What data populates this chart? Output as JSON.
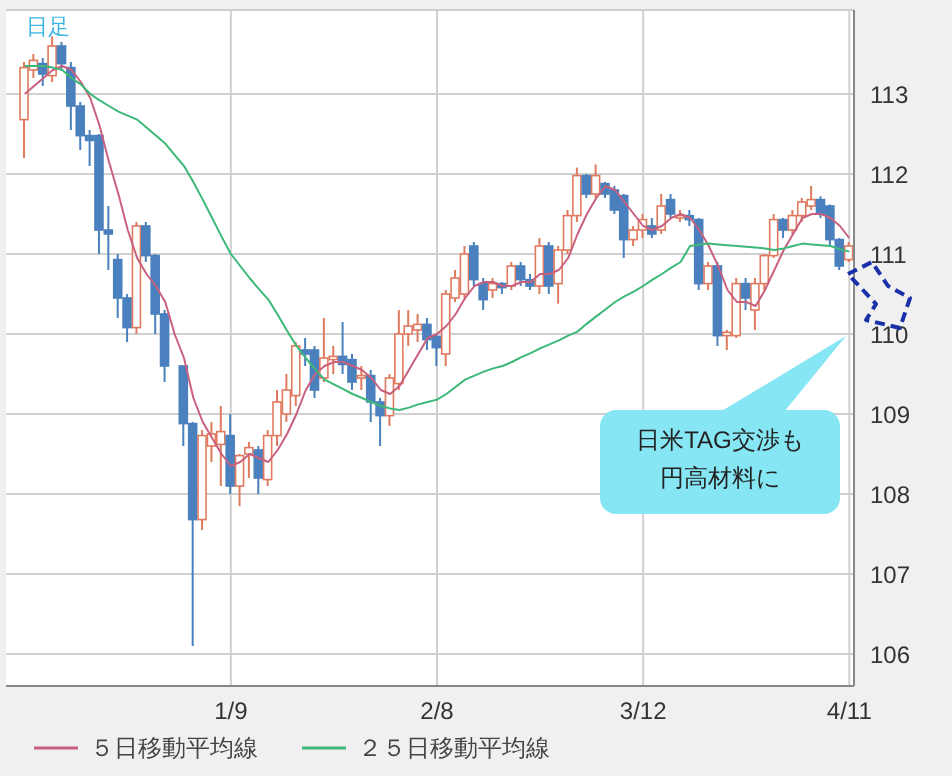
{
  "chart_data": {
    "type": "candlestick",
    "annotations": [
      "日足",
      "日米TAG交渉も円高材料に"
    ],
    "categories": [
      null,
      null,
      null,
      null,
      null,
      null,
      null,
      null,
      null,
      null,
      null,
      null,
      null,
      null,
      null,
      null,
      null,
      null,
      null,
      null,
      null,
      null,
      "1/9",
      null,
      null,
      null,
      null,
      null,
      null,
      null,
      null,
      null,
      null,
      null,
      null,
      null,
      null,
      null,
      null,
      null,
      null,
      null,
      null,
      null,
      "2/8",
      null,
      null,
      null,
      null,
      null,
      null,
      null,
      null,
      null,
      null,
      null,
      null,
      null,
      null,
      null,
      null,
      null,
      null,
      null,
      null,
      null,
      "3/12",
      null,
      null,
      null,
      null,
      null,
      null,
      null,
      null,
      null,
      null,
      null,
      null,
      null,
      null,
      null,
      null,
      null,
      null,
      null,
      null,
      null,
      "4/11"
    ],
    "ohlc": [
      [
        112.68,
        113.4,
        112.2,
        113.33
      ],
      [
        113.3,
        113.5,
        113.2,
        113.42
      ],
      [
        113.38,
        113.45,
        113.1,
        113.25
      ],
      [
        113.23,
        113.72,
        113.15,
        113.6
      ],
      [
        113.6,
        113.65,
        113.3,
        113.38
      ],
      [
        113.33,
        113.4,
        112.55,
        112.85
      ],
      [
        112.85,
        112.9,
        112.3,
        112.48
      ],
      [
        112.48,
        112.55,
        112.1,
        112.42
      ],
      [
        112.48,
        112.5,
        111.0,
        111.3
      ],
      [
        111.3,
        111.6,
        110.8,
        111.25
      ],
      [
        110.93,
        111.0,
        110.2,
        110.45
      ],
      [
        110.45,
        110.5,
        109.9,
        110.08
      ],
      [
        110.08,
        111.4,
        110.0,
        111.35
      ],
      [
        111.35,
        111.4,
        110.9,
        110.98
      ],
      [
        110.98,
        111.0,
        110.0,
        110.25
      ],
      [
        110.25,
        110.3,
        109.4,
        109.6
      ],
      null,
      [
        109.6,
        109.6,
        108.6,
        108.88
      ],
      [
        108.88,
        108.9,
        106.1,
        107.68
      ],
      [
        107.68,
        108.8,
        107.55,
        108.73
      ],
      [
        108.6,
        108.9,
        108.4,
        108.75
      ],
      [
        108.62,
        109.1,
        108.1,
        108.78
      ],
      [
        108.73,
        109.0,
        108.0,
        108.1
      ],
      [
        108.1,
        108.5,
        107.85,
        108.48
      ],
      [
        108.5,
        108.65,
        108.2,
        108.58
      ],
      [
        108.55,
        108.6,
        108.0,
        108.2
      ],
      [
        108.18,
        108.8,
        108.1,
        108.73
      ],
      [
        108.73,
        109.3,
        108.6,
        109.15
      ],
      [
        109.0,
        109.5,
        108.9,
        109.3
      ],
      [
        109.23,
        109.9,
        109.1,
        109.85
      ],
      [
        109.8,
        109.95,
        109.6,
        109.75
      ],
      [
        109.8,
        109.85,
        109.2,
        109.3
      ],
      [
        109.45,
        110.2,
        109.4,
        109.7
      ],
      [
        109.68,
        109.85,
        109.5,
        109.72
      ],
      [
        109.72,
        110.15,
        109.5,
        109.62
      ],
      [
        109.68,
        109.75,
        109.3,
        109.4
      ],
      [
        109.45,
        109.6,
        109.3,
        109.48
      ],
      [
        109.48,
        109.55,
        108.9,
        109.15
      ],
      [
        109.15,
        109.2,
        108.6,
        108.98
      ],
      [
        108.98,
        109.5,
        108.85,
        109.45
      ],
      [
        109.38,
        110.3,
        109.3,
        110.0
      ],
      [
        110.0,
        110.3,
        109.85,
        110.1
      ],
      [
        110.05,
        110.25,
        109.9,
        110.12
      ],
      [
        110.12,
        110.2,
        109.8,
        109.93
      ],
      [
        109.97,
        110.0,
        109.6,
        109.83
      ],
      [
        109.75,
        110.55,
        109.6,
        110.5
      ],
      [
        110.45,
        110.8,
        110.4,
        110.7
      ],
      [
        110.5,
        111.1,
        110.45,
        111.0
      ],
      [
        111.1,
        111.15,
        110.6,
        110.68
      ],
      [
        110.63,
        110.7,
        110.3,
        110.43
      ],
      [
        110.55,
        110.7,
        110.45,
        110.63
      ],
      [
        110.63,
        110.65,
        110.5,
        110.58
      ],
      [
        110.6,
        110.9,
        110.55,
        110.85
      ],
      [
        110.85,
        110.9,
        110.6,
        110.68
      ],
      [
        110.68,
        110.75,
        110.55,
        110.6
      ],
      [
        110.6,
        111.2,
        110.5,
        111.1
      ],
      [
        111.1,
        111.15,
        110.5,
        110.6
      ],
      [
        110.63,
        111.1,
        110.38,
        111.05
      ],
      [
        111.05,
        111.55,
        111.0,
        111.48
      ],
      [
        111.48,
        112.08,
        111.4,
        111.98
      ],
      [
        111.98,
        112.0,
        111.7,
        111.75
      ],
      [
        111.75,
        112.12,
        111.7,
        111.98
      ],
      [
        111.88,
        111.9,
        111.7,
        111.75
      ],
      [
        111.8,
        111.85,
        111.5,
        111.55
      ],
      [
        111.73,
        111.75,
        110.95,
        111.18
      ],
      [
        111.18,
        111.35,
        111.1,
        111.3
      ],
      [
        111.3,
        111.5,
        111.2,
        111.43
      ],
      [
        111.35,
        111.45,
        111.2,
        111.25
      ],
      [
        111.3,
        111.75,
        111.25,
        111.6
      ],
      [
        111.68,
        111.75,
        111.45,
        111.5
      ],
      [
        111.45,
        111.55,
        111.4,
        111.48
      ],
      [
        111.48,
        111.55,
        111.35,
        111.43
      ],
      [
        111.43,
        111.45,
        110.55,
        110.63
      ],
      [
        110.63,
        110.9,
        110.55,
        110.85
      ],
      [
        110.85,
        110.9,
        109.85,
        109.98
      ],
      [
        109.98,
        110.05,
        109.8,
        110.02
      ],
      [
        109.98,
        110.7,
        109.95,
        110.63
      ],
      [
        110.63,
        110.7,
        110.3,
        110.45
      ],
      [
        110.3,
        110.7,
        110.05,
        110.63
      ],
      [
        110.63,
        111.0,
        110.55,
        110.98
      ],
      [
        110.98,
        111.5,
        110.95,
        111.43
      ],
      [
        111.43,
        111.45,
        111.2,
        111.3
      ],
      [
        111.3,
        111.55,
        111.25,
        111.48
      ],
      [
        111.48,
        111.7,
        111.4,
        111.65
      ],
      [
        111.6,
        111.85,
        111.55,
        111.68
      ],
      [
        111.68,
        111.72,
        111.45,
        111.5
      ],
      [
        111.6,
        111.62,
        111.1,
        111.18
      ],
      [
        111.18,
        111.2,
        110.8,
        110.85
      ],
      [
        110.93,
        111.15,
        110.9,
        111.1
      ]
    ],
    "colors": [
      "#e07a5f",
      "#e07a5f",
      "#4a80bd",
      "#e07a5f",
      "#4a80bd",
      "#4a80bd",
      "#4a80bd",
      "#4a80bd",
      "#4a80bd",
      "#4a80bd",
      "#4a80bd",
      "#4a80bd",
      "#e07a5f",
      "#4a80bd",
      "#4a80bd",
      "#4a80bd",
      null,
      "#4a80bd",
      "#4a80bd",
      "#e07a5f",
      "#e07a5f",
      "#e07a5f",
      "#4a80bd",
      "#e07a5f",
      "#e07a5f",
      "#4a80bd",
      "#e07a5f",
      "#e07a5f",
      "#e07a5f",
      "#e07a5f",
      "#4a80bd",
      "#4a80bd",
      "#e07a5f",
      "#e07a5f",
      "#4a80bd",
      "#4a80bd",
      "#e07a5f",
      "#4a80bd",
      "#4a80bd",
      "#e07a5f",
      "#e07a5f",
      "#e07a5f",
      "#e07a5f",
      "#4a80bd",
      "#4a80bd",
      "#e07a5f",
      "#e07a5f",
      "#e07a5f",
      "#4a80bd",
      "#4a80bd",
      "#e07a5f",
      "#4a80bd",
      "#e07a5f",
      "#4a80bd",
      "#4a80bd",
      "#e07a5f",
      "#4a80bd",
      "#e07a5f",
      "#e07a5f",
      "#e07a5f",
      "#4a80bd",
      "#e07a5f",
      "#4a80bd",
      "#4a80bd",
      "#4a80bd",
      "#e07a5f",
      "#e07a5f",
      "#4a80bd",
      "#e07a5f",
      "#4a80bd",
      "#e07a5f",
      "#4a80bd",
      "#4a80bd",
      "#e07a5f",
      "#4a80bd",
      "#e07a5f",
      "#e07a5f",
      "#4a80bd",
      "#e07a5f",
      "#e07a5f",
      "#e07a5f",
      "#4a80bd",
      "#e07a5f",
      "#e07a5f",
      "#e07a5f",
      "#4a80bd",
      "#4a80bd",
      "#4a80bd",
      "#e07a5f"
    ],
    "series": [
      {
        "name": "５日移動平均線",
        "type": "line",
        "color": "#c8607e",
        "values": [
          113.0,
          113.1,
          113.2,
          113.3,
          113.35,
          113.3,
          113.15,
          112.95,
          112.6,
          112.15,
          111.75,
          111.3,
          110.95,
          110.75,
          110.6,
          110.4,
          110.0,
          109.7,
          109.2,
          108.9,
          108.7,
          108.5,
          108.35,
          108.4,
          108.5,
          108.45,
          108.4,
          108.55,
          108.75,
          109.0,
          109.3,
          109.5,
          109.6,
          109.65,
          109.65,
          109.6,
          109.55,
          109.45,
          109.3,
          109.25,
          109.35,
          109.55,
          109.75,
          109.95,
          110.0,
          110.1,
          110.25,
          110.45,
          110.6,
          110.65,
          110.65,
          110.6,
          110.6,
          110.65,
          110.65,
          110.75,
          110.75,
          110.8,
          110.95,
          111.25,
          111.5,
          111.7,
          111.85,
          111.8,
          111.65,
          111.5,
          111.35,
          111.3,
          111.35,
          111.45,
          111.5,
          111.45,
          111.3,
          111.1,
          110.85,
          110.55,
          110.4,
          110.4,
          110.35,
          110.55,
          110.8,
          111.05,
          111.25,
          111.45,
          111.5,
          111.5,
          111.45,
          111.35,
          111.2
        ]
      },
      {
        "name": "２５日移動平均線",
        "type": "line",
        "color": "#3cb878",
        "values": [
          113.35,
          113.35,
          113.35,
          113.33,
          113.3,
          113.2,
          113.12,
          113.0,
          112.92,
          112.85,
          112.78,
          112.73,
          112.68,
          112.58,
          112.48,
          112.38,
          112.24,
          112.1,
          111.9,
          111.68,
          111.45,
          111.22,
          111.0,
          110.85,
          110.7,
          110.56,
          110.43,
          110.24,
          110.04,
          109.85,
          109.7,
          109.56,
          109.43,
          109.37,
          109.31,
          109.25,
          109.2,
          109.15,
          109.1,
          109.07,
          109.05,
          109.08,
          109.12,
          109.15,
          109.18,
          109.25,
          109.34,
          109.43,
          109.48,
          109.53,
          109.57,
          109.6,
          109.65,
          109.71,
          109.76,
          109.82,
          109.87,
          109.92,
          109.98,
          110.03,
          110.13,
          110.22,
          110.31,
          110.4,
          110.47,
          110.53,
          110.6,
          110.68,
          110.75,
          110.83,
          110.9,
          111.1,
          111.12,
          111.13,
          111.12,
          111.11,
          111.1,
          111.09,
          111.08,
          111.07,
          111.05,
          111.07,
          111.1,
          111.13,
          111.12,
          111.11,
          111.1,
          111.06,
          111.03
        ]
      }
    ],
    "ylim": [
      105.6,
      114.05
    ],
    "yticks": [
      106,
      107,
      108,
      109,
      110,
      111,
      112,
      113
    ],
    "grid": true,
    "legend": "bottom"
  }
}
